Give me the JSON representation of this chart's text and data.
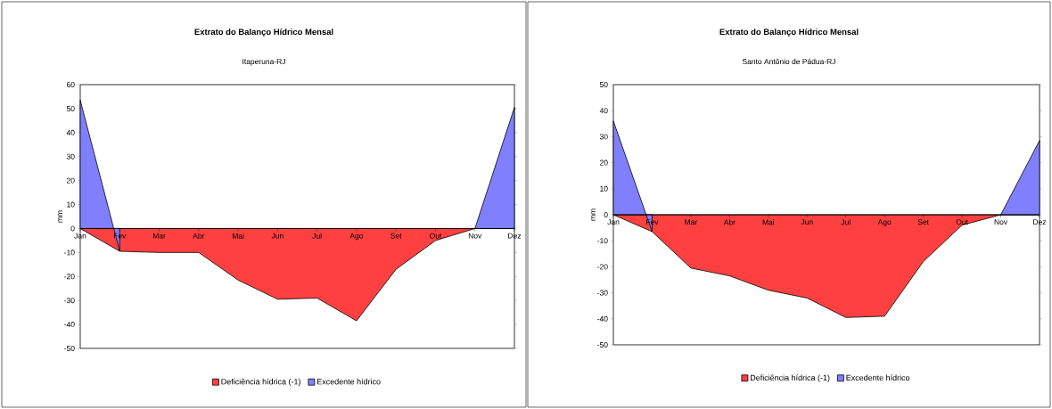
{
  "chart_data": [
    {
      "type": "area",
      "title": "Extrato do Balanço Hídrico Mensal",
      "subtitle": "Itaperuna-RJ",
      "ylabel": "mm",
      "categories": [
        "Jan",
        "Fev",
        "Mar",
        "Abr",
        "Mai",
        "Jun",
        "Jul",
        "Ago",
        "Set",
        "Out",
        "Nov",
        "Dez"
      ],
      "series": [
        {
          "name": "Deficiência hídrica (-1)",
          "color": "#ff4040",
          "values": [
            0,
            -9.5,
            -10,
            -10,
            -21.5,
            -29.5,
            -29,
            -38.5,
            -17,
            -5,
            0,
            0
          ]
        },
        {
          "name": "Excedente hídrico",
          "color": "#8080ff",
          "values": [
            53.5,
            -9.5,
            null,
            null,
            null,
            null,
            null,
            null,
            null,
            null,
            0,
            50.5
          ]
        }
      ],
      "ylim": [
        -50,
        60
      ],
      "yticks": [
        -50,
        -40,
        -30,
        -20,
        -10,
        0,
        10,
        20,
        30,
        40,
        50,
        60
      ],
      "legend": "bottom",
      "grid": false
    },
    {
      "type": "area",
      "title": "Extrato do Balanço Hídrico Mensal",
      "subtitle": "Santo Antônio de Pádua-RJ",
      "ylabel": "mm",
      "categories": [
        "Jan",
        "Fev",
        "Mar",
        "Abr",
        "Mai",
        "Jun",
        "Jul",
        "Ago",
        "Set",
        "Out",
        "Nov",
        "Dez"
      ],
      "series": [
        {
          "name": "Deficiência hídrica (-1)",
          "color": "#ff4040",
          "values": [
            0,
            -6.5,
            -20.5,
            -23.5,
            -29,
            -32,
            -39.5,
            -39,
            -18,
            -4,
            0,
            0
          ]
        },
        {
          "name": "Excedente hídrico",
          "color": "#8080ff",
          "values": [
            36,
            -6.5,
            null,
            null,
            null,
            null,
            null,
            null,
            null,
            null,
            0,
            28.5
          ]
        }
      ],
      "ylim": [
        -50,
        50
      ],
      "yticks": [
        -50,
        -40,
        -30,
        -20,
        -10,
        0,
        10,
        20,
        30,
        40,
        50
      ],
      "legend": "bottom",
      "grid": false
    }
  ]
}
